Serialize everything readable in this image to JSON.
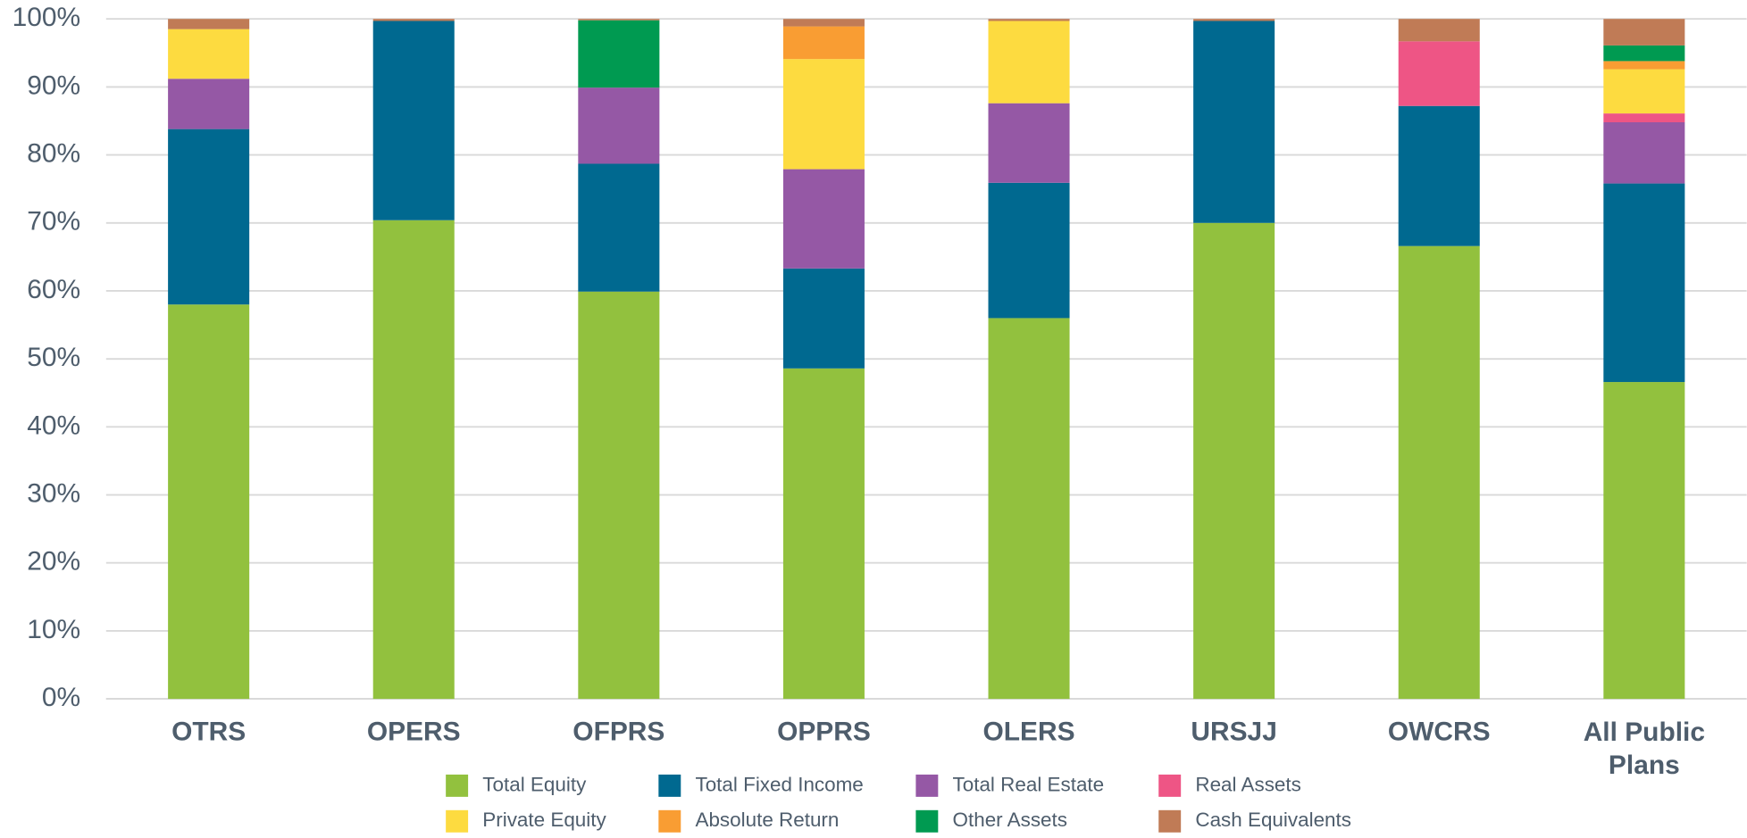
{
  "chart_data": {
    "type": "stacked_bar",
    "categories": [
      "OTRS",
      "OPERS",
      "OFPRS",
      "OPPRS",
      "OLERS",
      "URSJJ",
      "OWCRS",
      "All Public Plans"
    ],
    "series": [
      {
        "name": "Total Equity",
        "color": "#92c13e",
        "values": [
          58.0,
          70.4,
          59.9,
          48.6,
          56.0,
          70.0,
          66.6,
          46.6
        ]
      },
      {
        "name": "Total Fixed Income",
        "color": "#006990",
        "values": [
          25.8,
          29.3,
          18.8,
          14.7,
          19.9,
          29.7,
          20.6,
          29.2
        ]
      },
      {
        "name": "Total Real Estate",
        "color": "#9558a5",
        "values": [
          7.4,
          0,
          11.2,
          14.6,
          11.7,
          0,
          0,
          9.0
        ]
      },
      {
        "name": "Real Assets",
        "color": "#ee5585",
        "values": [
          0,
          0,
          0,
          0,
          0,
          0,
          9.5,
          1.3
        ]
      },
      {
        "name": "Private Equity",
        "color": "#fddb40",
        "values": [
          7.3,
          0,
          0,
          16.2,
          12.1,
          0,
          0,
          6.5
        ]
      },
      {
        "name": "Absolute Return",
        "color": "#f99d33",
        "values": [
          0,
          0,
          0,
          4.8,
          0,
          0,
          0,
          1.2
        ]
      },
      {
        "name": "Other Assets",
        "color": "#009a51",
        "values": [
          0,
          0,
          9.9,
          0,
          0,
          0,
          0,
          2.3
        ]
      },
      {
        "name": "Cash Equivalents",
        "color": "#c07b56",
        "values": [
          1.5,
          0.3,
          0.2,
          1.1,
          0.3,
          0.3,
          3.3,
          3.9
        ]
      }
    ],
    "ylim": [
      0,
      100
    ],
    "yticks": [
      {
        "value": 0,
        "label": "0%"
      },
      {
        "value": 10,
        "label": "10%"
      },
      {
        "value": 20,
        "label": "20%"
      },
      {
        "value": 30,
        "label": "30%"
      },
      {
        "value": 40,
        "label": "40%"
      },
      {
        "value": 50,
        "label": "50%"
      },
      {
        "value": 60,
        "label": "60%"
      },
      {
        "value": 70,
        "label": "70%"
      },
      {
        "value": 80,
        "label": "80%"
      },
      {
        "value": 90,
        "label": "90%"
      },
      {
        "value": 100,
        "label": "100%"
      }
    ],
    "grid": true,
    "legend": "bottom"
  }
}
